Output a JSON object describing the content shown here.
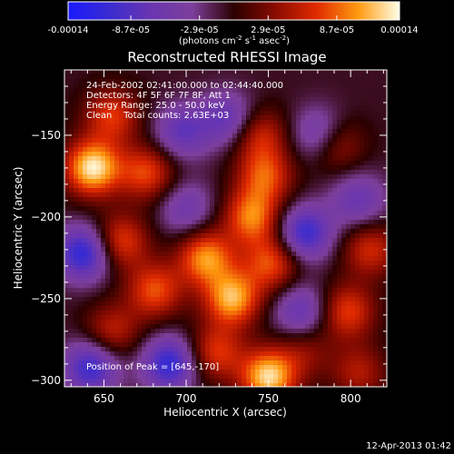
{
  "chart_data": {
    "type": "heatmap",
    "title": "Reconstructed RHESSI Image",
    "colorbar": {
      "tick_labels": [
        "-0.00014",
        "-8.7e-05",
        "-2.9e-05",
        "2.9e-05",
        "8.7e-05",
        "0.00014"
      ],
      "tick_values": [
        -0.00014,
        -8.7e-05,
        -2.9e-05,
        2.9e-05,
        8.7e-05,
        0.00014
      ],
      "range": [
        -0.00014,
        0.00014
      ],
      "unit_label_base": "(photons cm",
      "unit_exp1": "-2",
      "unit_mid": " s",
      "unit_exp2": "-1",
      "unit_mid2": " asec",
      "unit_exp3": "-2",
      "unit_close": ")",
      "colors": [
        "#1a1aff",
        "#3a2bd0",
        "#6a36b0",
        "#7d3f9c",
        "#2a0000",
        "#8a0b00",
        "#e02a00",
        "#ff9a10",
        "#ffffe8"
      ]
    },
    "xlabel": "Heliocentric X (arcsec)",
    "ylabel": "Heliocentric Y (arcsec)",
    "xlim": [
      626,
      822
    ],
    "ylim": [
      -304,
      -110
    ],
    "x_ticks": [
      650,
      700,
      750,
      800
    ],
    "y_ticks": [
      -150,
      -200,
      -250,
      -300
    ],
    "annotations": [
      "24-Feb-2002 02:41:00.000 to 02:44:40.000",
      "Detectors: 4F 5F 6F 7F 8F, Att 1",
      "Energy Range: 25.0 - 50.0 keV",
      "Clean    Total counts: 2.63E+03",
      "Position of Peak = [645,-170]"
    ],
    "sources": [
      {
        "x": 643,
        "y": -170,
        "amp": 1.0
      },
      {
        "x": 655,
        "y": -138,
        "amp": 0.55
      },
      {
        "x": 676,
        "y": -173,
        "amp": 0.6
      },
      {
        "x": 660,
        "y": -215,
        "amp": 0.6
      },
      {
        "x": 681,
        "y": -245,
        "amp": 0.62
      },
      {
        "x": 655,
        "y": -270,
        "amp": 0.45
      },
      {
        "x": 712,
        "y": -225,
        "amp": 0.78
      },
      {
        "x": 728,
        "y": -250,
        "amp": 0.85
      },
      {
        "x": 740,
        "y": -200,
        "amp": 0.72
      },
      {
        "x": 748,
        "y": -175,
        "amp": 0.6
      },
      {
        "x": 745,
        "y": -150,
        "amp": 0.48
      },
      {
        "x": 752,
        "y": -228,
        "amp": 0.62
      },
      {
        "x": 718,
        "y": -283,
        "amp": 0.55
      },
      {
        "x": 750,
        "y": -298,
        "amp": 0.95
      },
      {
        "x": 790,
        "y": -155,
        "amp": 0.55
      },
      {
        "x": 798,
        "y": -258,
        "amp": 0.58
      },
      {
        "x": 812,
        "y": -220,
        "amp": 0.5
      },
      {
        "x": 805,
        "y": -295,
        "amp": 0.4
      },
      {
        "x": 772,
        "y": -282,
        "amp": 0.3
      },
      {
        "x": 638,
        "y": -222,
        "amp": -0.8
      },
      {
        "x": 642,
        "y": -292,
        "amp": -0.7
      },
      {
        "x": 690,
        "y": -290,
        "amp": -0.75
      },
      {
        "x": 697,
        "y": -148,
        "amp": -0.5
      },
      {
        "x": 725,
        "y": -140,
        "amp": -0.5
      },
      {
        "x": 772,
        "y": -210,
        "amp": -0.72
      },
      {
        "x": 782,
        "y": -150,
        "amp": -0.6
      },
      {
        "x": 805,
        "y": -190,
        "amp": -0.45
      },
      {
        "x": 770,
        "y": -258,
        "amp": -0.5
      },
      {
        "x": 700,
        "y": -195,
        "amp": -0.4
      }
    ]
  },
  "footer": {
    "timestamp": "12-Apr-2013 01:42"
  }
}
